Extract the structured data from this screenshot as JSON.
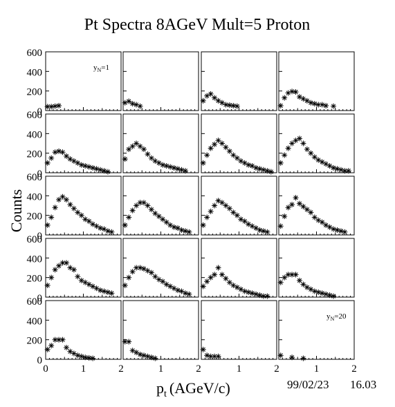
{
  "chart_data": {
    "type": "scatter",
    "title": "Pt Spectra 8AGeV Mult=5 Proton",
    "xlabel": "p",
    "xlabel_subscript": "t",
    "xlabel_unit": "(AGeV/c)",
    "ylabel": "Counts",
    "footer_date": "99/02/23",
    "footer_time": "16.03",
    "grid": "4 columns x 5 rows of pads",
    "marker": "asterisk",
    "xlim": [
      0,
      2
    ],
    "ylim": [
      0,
      600
    ],
    "x_ticks": [
      "0",
      "1",
      "2"
    ],
    "y_ticks": [
      "0",
      "200",
      "400",
      "600"
    ],
    "panels": [
      {
        "annotation": "y",
        "annotation_sub": "N",
        "annotation_tail": "=1",
        "x": [
          0.05,
          0.15,
          0.25,
          0.35
        ],
        "y": [
          40,
          40,
          45,
          50
        ]
      },
      {
        "x": [
          0.05,
          0.15,
          0.25,
          0.35,
          0.45
        ],
        "y": [
          80,
          95,
          70,
          60,
          45
        ]
      },
      {
        "x": [
          0.05,
          0.15,
          0.25,
          0.35,
          0.45,
          0.55,
          0.65,
          0.75,
          0.85,
          0.95
        ],
        "y": [
          100,
          150,
          170,
          130,
          100,
          80,
          60,
          55,
          50,
          45
        ]
      },
      {
        "x": [
          0.05,
          0.15,
          0.25,
          0.35,
          0.45,
          0.55,
          0.65,
          0.75,
          0.85,
          0.95,
          1.05,
          1.15,
          1.25,
          1.45
        ],
        "y": [
          50,
          130,
          180,
          195,
          190,
          140,
          120,
          100,
          80,
          70,
          60,
          60,
          50,
          45
        ]
      },
      {
        "x": [
          0.05,
          0.15,
          0.25,
          0.35,
          0.45,
          0.55,
          0.65,
          0.75,
          0.85,
          0.95,
          1.05,
          1.15,
          1.25,
          1.35,
          1.45,
          1.55,
          1.65
        ],
        "y": [
          100,
          150,
          210,
          220,
          210,
          170,
          140,
          120,
          100,
          80,
          70,
          60,
          50,
          40,
          30,
          20,
          10
        ]
      },
      {
        "x": [
          0.05,
          0.15,
          0.25,
          0.35,
          0.45,
          0.55,
          0.65,
          0.75,
          0.85,
          0.95,
          1.05,
          1.15,
          1.25,
          1.35,
          1.45,
          1.55,
          1.65
        ],
        "y": [
          140,
          240,
          270,
          300,
          270,
          240,
          190,
          150,
          120,
          100,
          80,
          70,
          60,
          50,
          40,
          30,
          20
        ]
      },
      {
        "x": [
          0.05,
          0.15,
          0.25,
          0.35,
          0.45,
          0.55,
          0.65,
          0.75,
          0.85,
          0.95,
          1.05,
          1.15,
          1.25,
          1.35,
          1.45,
          1.55,
          1.65,
          1.75,
          1.85
        ],
        "y": [
          100,
          180,
          250,
          290,
          330,
          300,
          260,
          220,
          180,
          150,
          120,
          100,
          80,
          70,
          50,
          40,
          30,
          20,
          10
        ]
      },
      {
        "x": [
          0.05,
          0.15,
          0.25,
          0.35,
          0.45,
          0.55,
          0.65,
          0.75,
          0.85,
          0.95,
          1.05,
          1.15,
          1.25,
          1.35,
          1.45,
          1.55,
          1.65,
          1.75,
          1.85
        ],
        "y": [
          100,
          180,
          250,
          300,
          330,
          350,
          300,
          240,
          200,
          160,
          130,
          110,
          90,
          70,
          50,
          40,
          30,
          20,
          20
        ]
      },
      {
        "x": [
          0.05,
          0.15,
          0.25,
          0.35,
          0.45,
          0.55,
          0.65,
          0.75,
          0.85,
          0.95,
          1.05,
          1.15,
          1.25,
          1.35,
          1.45,
          1.55,
          1.65,
          1.75
        ],
        "y": [
          100,
          180,
          280,
          360,
          390,
          360,
          310,
          270,
          230,
          200,
          160,
          140,
          110,
          90,
          70,
          60,
          40,
          30
        ]
      },
      {
        "x": [
          0.05,
          0.15,
          0.25,
          0.35,
          0.45,
          0.55,
          0.65,
          0.75,
          0.85,
          0.95,
          1.05,
          1.15,
          1.25,
          1.35,
          1.45,
          1.55,
          1.65,
          1.75
        ],
        "y": [
          100,
          180,
          250,
          300,
          330,
          330,
          300,
          260,
          220,
          190,
          160,
          130,
          100,
          80,
          70,
          50,
          40,
          30
        ]
      },
      {
        "x": [
          0.05,
          0.15,
          0.25,
          0.35,
          0.45,
          0.55,
          0.65,
          0.75,
          0.85,
          0.95,
          1.05,
          1.15,
          1.25,
          1.35,
          1.45,
          1.55,
          1.65,
          1.75
        ],
        "y": [
          100,
          180,
          240,
          300,
          350,
          330,
          300,
          270,
          230,
          200,
          160,
          140,
          110,
          90,
          70,
          50,
          40,
          30
        ]
      },
      {
        "x": [
          0.05,
          0.15,
          0.25,
          0.35,
          0.45,
          0.55,
          0.65,
          0.75,
          0.85,
          0.95,
          1.05,
          1.15,
          1.25,
          1.35,
          1.45,
          1.55,
          1.65,
          1.75
        ],
        "y": [
          90,
          190,
          280,
          310,
          380,
          320,
          290,
          260,
          230,
          180,
          150,
          130,
          100,
          80,
          60,
          50,
          40,
          30
        ]
      },
      {
        "x": [
          0.05,
          0.15,
          0.25,
          0.35,
          0.45,
          0.55,
          0.65,
          0.75,
          0.85,
          0.95,
          1.05,
          1.15,
          1.25,
          1.35,
          1.45,
          1.55,
          1.65,
          1.75
        ],
        "y": [
          120,
          200,
          280,
          320,
          350,
          350,
          300,
          280,
          210,
          170,
          150,
          130,
          110,
          90,
          70,
          60,
          50,
          40
        ]
      },
      {
        "x": [
          0.05,
          0.15,
          0.25,
          0.35,
          0.45,
          0.55,
          0.65,
          0.75,
          0.85,
          0.95,
          1.05,
          1.15,
          1.25,
          1.35,
          1.45,
          1.55,
          1.65,
          1.75
        ],
        "y": [
          120,
          200,
          260,
          300,
          300,
          290,
          270,
          250,
          210,
          180,
          160,
          130,
          110,
          90,
          70,
          60,
          40,
          30
        ]
      },
      {
        "x": [
          0.05,
          0.15,
          0.25,
          0.35,
          0.45,
          0.55,
          0.65,
          0.75,
          0.85,
          0.95,
          1.05,
          1.15,
          1.25,
          1.35,
          1.45,
          1.55,
          1.65,
          1.75
        ],
        "y": [
          110,
          160,
          200,
          230,
          300,
          230,
          190,
          150,
          120,
          100,
          80,
          60,
          50,
          40,
          30,
          20,
          10,
          10
        ]
      },
      {
        "x": [
          0.05,
          0.15,
          0.25,
          0.35,
          0.45,
          0.55,
          0.65,
          0.75,
          0.85,
          0.95,
          1.05,
          1.15,
          1.25,
          1.35,
          1.45
        ],
        "y": [
          150,
          200,
          230,
          230,
          230,
          170,
          130,
          100,
          80,
          60,
          50,
          40,
          30,
          20,
          10
        ]
      },
      {
        "x": [
          0.05,
          0.15,
          0.25,
          0.35,
          0.45,
          0.55,
          0.65,
          0.75,
          0.85,
          0.95,
          1.05,
          1.15,
          1.25
        ],
        "y": [
          100,
          140,
          200,
          200,
          200,
          120,
          80,
          60,
          40,
          30,
          20,
          15,
          10
        ]
      },
      {
        "x": [
          0.05,
          0.15,
          0.25,
          0.35,
          0.45,
          0.55,
          0.65,
          0.75,
          0.85
        ],
        "y": [
          180,
          180,
          90,
          70,
          50,
          40,
          30,
          20,
          10
        ]
      },
      {
        "x": [
          0.05,
          0.15,
          0.25,
          0.35,
          0.45
        ],
        "y": [
          100,
          40,
          30,
          30,
          30
        ]
      },
      {
        "annotation": "y",
        "annotation_sub": "N",
        "annotation_tail": "=20",
        "x": [
          0.05,
          0.35,
          0.65
        ],
        "y": [
          40,
          20,
          10
        ]
      }
    ]
  }
}
